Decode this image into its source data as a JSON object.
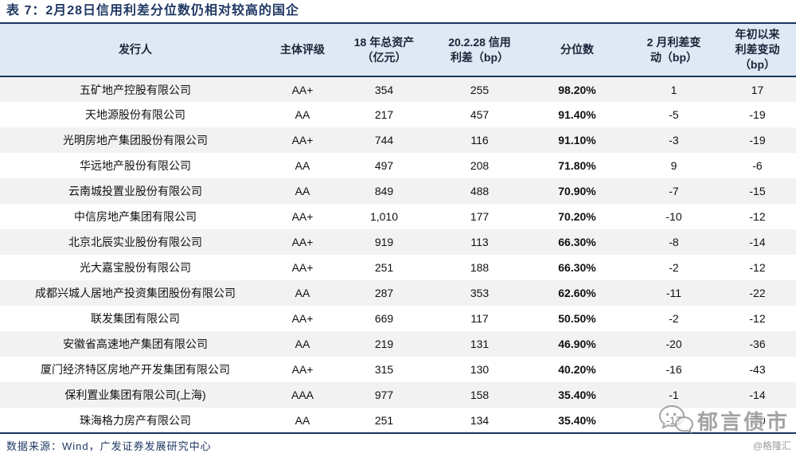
{
  "title": "表 7：2月28日信用利差分位数仍相对较高的国企",
  "table": {
    "columns": [
      "发行人",
      "主体评级",
      "18 年总资产\n（亿元）",
      "20.2.28 信用\n利差（bp）",
      "分位数",
      "2 月利差变\n动（bp）",
      "年初以来\n利差变动\n（bp）"
    ],
    "rows": [
      [
        "五矿地产控股有限公司",
        "AA+",
        "354",
        "255",
        "98.20%",
        "1",
        "17"
      ],
      [
        "天地源股份有限公司",
        "AA",
        "217",
        "457",
        "91.40%",
        "-5",
        "-19"
      ],
      [
        "光明房地产集团股份有限公司",
        "AA+",
        "744",
        "116",
        "91.10%",
        "-3",
        "-19"
      ],
      [
        "华远地产股份有限公司",
        "AA",
        "497",
        "208",
        "71.80%",
        "9",
        "-6"
      ],
      [
        "云南城投置业股份有限公司",
        "AA",
        "849",
        "488",
        "70.90%",
        "-7",
        "-15"
      ],
      [
        "中信房地产集团有限公司",
        "AA+",
        "1,010",
        "177",
        "70.20%",
        "-10",
        "-12"
      ],
      [
        "北京北辰实业股份有限公司",
        "AA+",
        "919",
        "113",
        "66.30%",
        "-8",
        "-14"
      ],
      [
        "光大嘉宝股份有限公司",
        "AA+",
        "251",
        "188",
        "66.30%",
        "-2",
        "-12"
      ],
      [
        "成都兴城人居地产投资集团股份有限公司",
        "AA",
        "287",
        "353",
        "62.60%",
        "-11",
        "-22"
      ],
      [
        "联发集团有限公司",
        "AA+",
        "669",
        "117",
        "50.50%",
        "-2",
        "-12"
      ],
      [
        "安徽省高速地产集团有限公司",
        "AA",
        "219",
        "131",
        "46.90%",
        "-20",
        "-36"
      ],
      [
        "厦门经济特区房地产开发集团有限公司",
        "AA+",
        "315",
        "130",
        "40.20%",
        "-16",
        "-43"
      ],
      [
        "保利置业集团有限公司(上海)",
        "AAA",
        "977",
        "158",
        "35.40%",
        "-1",
        "-14"
      ],
      [
        "珠海格力房产有限公司",
        "AA",
        "251",
        "134",
        "35.40%",
        "-17",
        "-20"
      ]
    ]
  },
  "footer": {
    "source": "数据来源：Wind，广发证券发展研究中心",
    "watermark": "郁言债市",
    "credit": "@格隆汇"
  },
  "colors": {
    "accent_navy": "#17365D",
    "title_text": "#1F3864",
    "header_bg": "#DEE9F5",
    "row_stripe": "#F2F2F2",
    "watermark_gray": "#9a9a9a"
  }
}
